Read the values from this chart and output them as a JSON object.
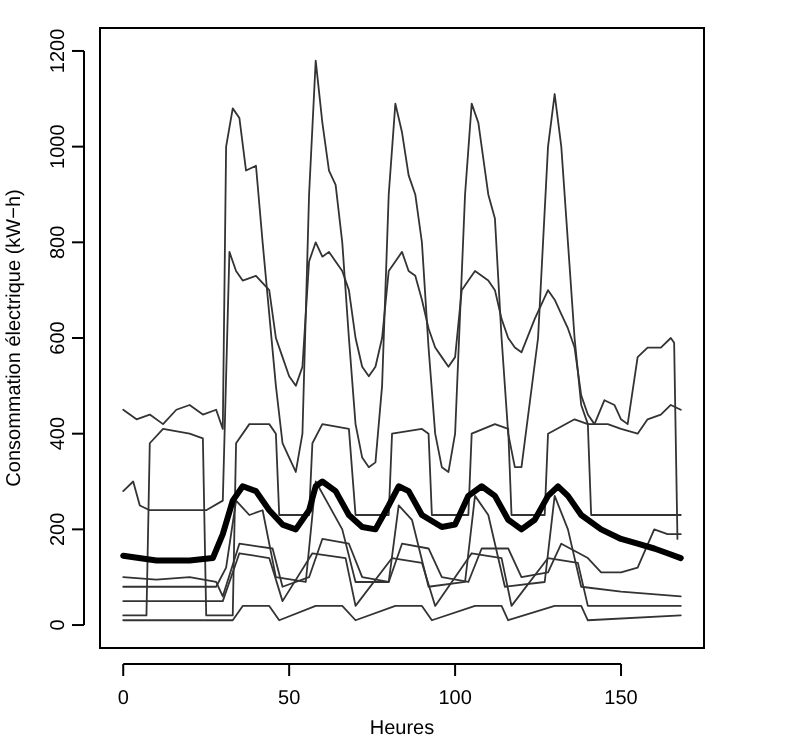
{
  "chart_data": {
    "type": "line",
    "xlabel": "Heures",
    "ylabel": "Consommation électrique (kW−h)",
    "xlim": [
      -7,
      175
    ],
    "ylim": [
      -48,
      1248
    ],
    "xticks": [
      0,
      50,
      100,
      150
    ],
    "yticks": [
      0,
      200,
      400,
      600,
      800,
      1000,
      1200
    ],
    "grid": false,
    "marker": "none",
    "line_style": "solid",
    "series": [
      {
        "color": "#333333",
        "x": [
          0,
          4,
          8,
          12,
          16,
          20,
          24,
          28,
          30,
          31,
          33,
          35,
          37,
          40,
          42,
          44,
          46,
          48,
          50,
          52,
          54,
          56,
          58,
          60,
          62,
          64,
          66,
          68,
          70,
          72,
          74,
          76,
          78,
          80,
          82,
          84,
          86,
          88,
          90,
          92,
          94,
          96,
          98,
          100,
          103,
          105,
          107,
          110,
          112,
          114,
          116,
          118,
          120,
          125,
          128,
          130,
          132,
          134,
          136,
          138,
          140,
          142,
          145,
          148,
          150,
          152,
          155,
          158,
          162,
          165,
          166,
          167
        ],
        "values": [
          450,
          430,
          440,
          420,
          450,
          460,
          440,
          450,
          410,
          1000,
          1080,
          1060,
          950,
          960,
          800,
          650,
          500,
          380,
          350,
          320,
          400,
          900,
          1180,
          1050,
          950,
          920,
          800,
          600,
          420,
          350,
          330,
          340,
          500,
          900,
          1090,
          1030,
          940,
          900,
          800,
          580,
          400,
          330,
          320,
          400,
          900,
          1090,
          1050,
          900,
          850,
          600,
          400,
          330,
          330,
          600,
          1000,
          1110,
          1000,
          800,
          600,
          460,
          420,
          420,
          470,
          460,
          430,
          420,
          560,
          580,
          580,
          600,
          590,
          180
        ]
      },
      {
        "color": "#333333",
        "x": [
          0,
          3,
          5,
          8,
          15,
          25,
          30,
          32,
          34,
          36,
          40,
          44,
          46,
          48,
          50,
          52,
          54,
          56,
          58,
          60,
          62,
          64,
          66,
          68,
          70,
          72,
          74,
          76,
          78,
          80,
          82,
          84,
          86,
          88,
          90,
          92,
          94,
          96,
          98,
          100,
          102,
          104,
          106,
          108,
          110,
          112,
          114,
          116,
          118,
          120,
          124,
          128,
          130,
          132,
          134,
          136,
          138,
          140,
          142,
          146,
          150,
          155,
          158,
          162,
          165,
          168
        ],
        "values": [
          280,
          300,
          250,
          240,
          240,
          240,
          260,
          780,
          740,
          720,
          730,
          700,
          600,
          560,
          520,
          500,
          540,
          760,
          800,
          770,
          780,
          760,
          740,
          700,
          600,
          540,
          520,
          540,
          600,
          740,
          760,
          780,
          740,
          730,
          680,
          620,
          580,
          560,
          540,
          560,
          700,
          720,
          740,
          730,
          720,
          700,
          640,
          600,
          580,
          570,
          640,
          700,
          680,
          650,
          620,
          580,
          480,
          440,
          420,
          420,
          410,
          400,
          430,
          440,
          460,
          450
        ]
      },
      {
        "color": "#333333",
        "x": [
          0,
          7,
          8,
          12,
          20,
          24,
          25,
          33,
          34,
          38,
          44,
          46,
          47,
          56,
          57,
          60,
          68,
          70,
          80,
          81,
          90,
          92,
          93,
          104,
          105,
          112,
          116,
          117,
          127,
          128,
          136,
          140,
          141,
          150,
          168
        ],
        "values": [
          20,
          20,
          380,
          410,
          400,
          390,
          20,
          20,
          380,
          420,
          420,
          400,
          230,
          230,
          380,
          420,
          410,
          230,
          230,
          400,
          410,
          400,
          230,
          230,
          400,
          420,
          410,
          230,
          230,
          400,
          430,
          420,
          230,
          230,
          230
        ]
      },
      {
        "color": "#333333",
        "x": [
          0,
          28,
          31,
          34,
          38,
          42,
          46,
          55,
          58,
          62,
          66,
          70,
          80,
          83,
          87,
          92,
          103,
          106,
          110,
          115,
          127,
          130,
          134,
          138,
          150,
          168
        ],
        "values": [
          80,
          80,
          120,
          260,
          230,
          240,
          100,
          90,
          300,
          250,
          200,
          90,
          90,
          250,
          220,
          80,
          90,
          270,
          230,
          80,
          90,
          270,
          200,
          80,
          70,
          60
        ]
      },
      {
        "color": "#333333",
        "x": [
          0,
          30,
          35,
          44,
          48,
          57,
          67,
          70,
          81,
          90,
          94,
          105,
          114,
          117,
          128,
          137,
          140,
          168
        ],
        "values": [
          50,
          50,
          150,
          140,
          50,
          150,
          140,
          40,
          140,
          130,
          40,
          150,
          140,
          40,
          140,
          130,
          40,
          40
        ]
      },
      {
        "color": "#333333",
        "x": [
          0,
          33,
          36,
          44,
          47,
          58,
          66,
          70,
          82,
          90,
          93,
          106,
          114,
          116,
          130,
          138,
          140,
          168
        ],
        "values": [
          10,
          10,
          40,
          40,
          10,
          40,
          40,
          10,
          40,
          40,
          10,
          40,
          40,
          10,
          40,
          40,
          10,
          20
        ]
      },
      {
        "color": "#333333",
        "x": [
          0,
          10,
          20,
          28,
          30,
          35,
          45,
          48,
          56,
          60,
          68,
          72,
          80,
          84,
          92,
          96,
          104,
          108,
          116,
          120,
          128,
          132,
          140,
          144,
          150,
          155,
          160,
          164,
          168
        ],
        "values": [
          100,
          95,
          100,
          90,
          60,
          170,
          160,
          80,
          100,
          180,
          170,
          100,
          90,
          170,
          160,
          100,
          90,
          160,
          160,
          100,
          110,
          170,
          140,
          110,
          110,
          120,
          200,
          190,
          190
        ]
      },
      {
        "color": "#000000",
        "x": [
          0,
          10,
          20,
          27,
          30,
          33,
          36,
          40,
          44,
          48,
          52,
          56,
          58,
          60,
          64,
          68,
          72,
          76,
          80,
          83,
          86,
          90,
          96,
          100,
          104,
          108,
          112,
          116,
          120,
          124,
          128,
          131,
          134,
          138,
          144,
          150,
          155,
          160,
          164,
          168
        ],
        "values": [
          145,
          135,
          135,
          140,
          190,
          260,
          290,
          280,
          240,
          210,
          200,
          240,
          290,
          300,
          280,
          230,
          205,
          200,
          250,
          290,
          280,
          230,
          205,
          210,
          270,
          290,
          270,
          220,
          200,
          220,
          270,
          290,
          270,
          230,
          200,
          180,
          170,
          160,
          150,
          140
        ]
      }
    ]
  }
}
